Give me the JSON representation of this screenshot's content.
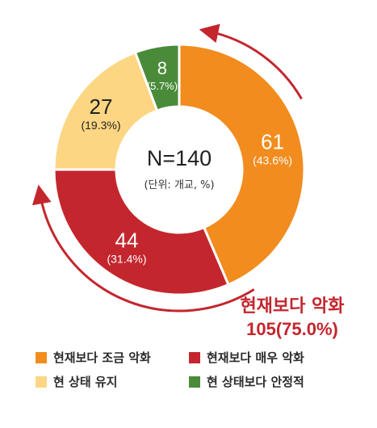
{
  "chart_data": {
    "type": "pie",
    "subtype": "donut",
    "center_title": "N=140",
    "center_subtitle": "(단위: 개교, %)",
    "slices": [
      {
        "name": "현재보다 조금 악화",
        "value": 61,
        "pct_label": "(43.6%)",
        "color": "#F28C1E"
      },
      {
        "name": "현재보다 매우 악화",
        "value": 44,
        "pct_label": "(31.4%)",
        "color": "#C4262E"
      },
      {
        "name": "현 상태 유지",
        "value": 27,
        "pct_label": "(19.3%)",
        "color": "#FCD683"
      },
      {
        "name": "현 상태보다 안정적",
        "value": 8,
        "pct_label": "(5.7%)",
        "color": "#4A8B3A"
      }
    ],
    "annotation": {
      "line1": "현재보다 악화",
      "line2": "105(75.0%)",
      "color": "#C4262E"
    },
    "legend_position": "bottom"
  }
}
